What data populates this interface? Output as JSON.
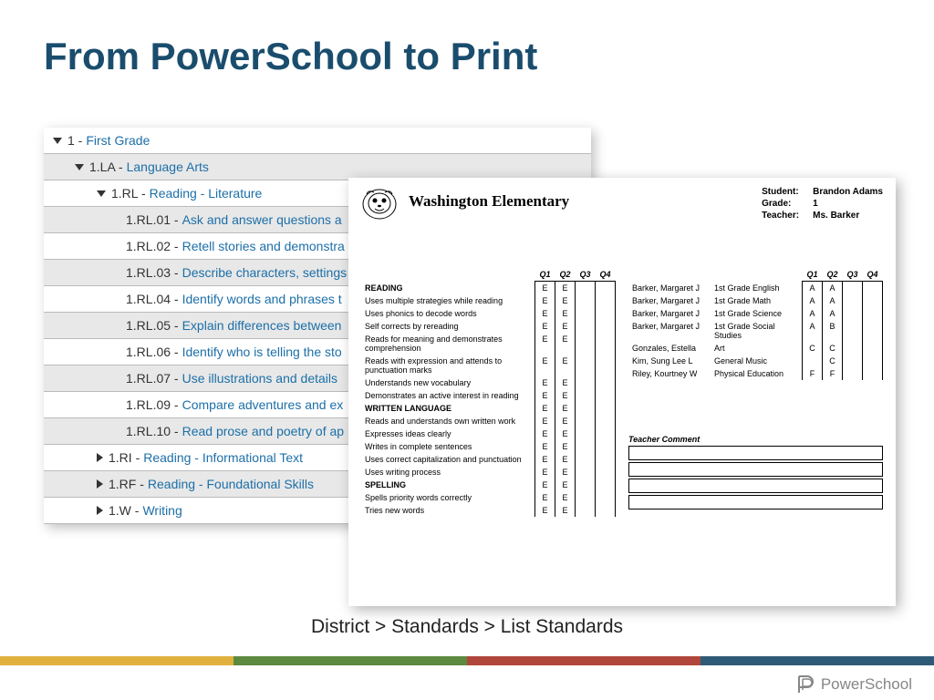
{
  "title": "From PowerSchool to Print",
  "breadcrumb": "District > Standards > List Standards",
  "footer_brand": "PowerSchool",
  "footer_colors": [
    "#e0b13f",
    "#5c8a3f",
    "#b0463c",
    "#2f5a77"
  ],
  "tree": {
    "root": {
      "code": "1 -",
      "label": "First Grade"
    },
    "items": [
      {
        "code": "1.LA -",
        "label": "Language Arts",
        "indent": 1,
        "arrow": "down"
      },
      {
        "code": "1.RL -",
        "label": "Reading - Literature",
        "indent": 2,
        "arrow": "down"
      },
      {
        "code": "1.RL.01 -",
        "label": "Ask and answer questions a",
        "indent": 3
      },
      {
        "code": "1.RL.02 -",
        "label": "Retell stories and demonstra",
        "indent": 3
      },
      {
        "code": "1.RL.03 -",
        "label": "Describe characters, settings",
        "indent": 3
      },
      {
        "code": "1.RL.04 -",
        "label": "Identify words and phrases t",
        "indent": 3
      },
      {
        "code": "1.RL.05 -",
        "label": "Explain differences between",
        "indent": 3
      },
      {
        "code": "1.RL.06 -",
        "label": "Identify who is telling the sto",
        "indent": 3
      },
      {
        "code": "1.RL.07 -",
        "label": "Use illustrations and details",
        "indent": 3
      },
      {
        "code": "1.RL.09 -",
        "label": "Compare adventures and ex",
        "indent": 3
      },
      {
        "code": "1.RL.10 -",
        "label": "Read prose and poetry of ap",
        "indent": 3
      },
      {
        "code": "1.RI -",
        "label": "Reading - Informational Text",
        "indent": 2,
        "arrow": "right"
      },
      {
        "code": "1.RF -",
        "label": "Reading - Foundational Skills",
        "indent": 2,
        "arrow": "right"
      },
      {
        "code": "1.W -",
        "label": "Writing",
        "indent": 2,
        "arrow": "right"
      }
    ]
  },
  "report": {
    "school": "Washington Elementary",
    "info": [
      {
        "label": "Student:",
        "value": "Brandon Adams"
      },
      {
        "label": "Grade:",
        "value": "1"
      },
      {
        "label": "Teacher:",
        "value": "Ms. Barker"
      }
    ],
    "quarters": [
      "Q1",
      "Q2",
      "Q3",
      "Q4"
    ],
    "left_rows": [
      {
        "label": "READING",
        "grades": [
          "E",
          "E",
          "",
          ""
        ],
        "section": true
      },
      {
        "label": "Uses multiple strategies while reading",
        "grades": [
          "E",
          "E",
          "",
          ""
        ]
      },
      {
        "label": "Uses phonics to decode words",
        "grades": [
          "E",
          "E",
          "",
          ""
        ]
      },
      {
        "label": "Self corrects by rereading",
        "grades": [
          "E",
          "E",
          "",
          ""
        ]
      },
      {
        "label": "Reads for meaning and demonstrates comprehension",
        "grades": [
          "E",
          "E",
          "",
          ""
        ]
      },
      {
        "label": "Reads with expression and attends to punctuation marks",
        "grades": [
          "E",
          "E",
          "",
          ""
        ]
      },
      {
        "label": "Understands new vocabulary",
        "grades": [
          "E",
          "E",
          "",
          ""
        ]
      },
      {
        "label": "Demonstrates an active interest in reading",
        "grades": [
          "E",
          "E",
          "",
          ""
        ]
      },
      {
        "label": "WRITTEN LANGUAGE",
        "grades": [
          "E",
          "E",
          "",
          ""
        ],
        "section": true
      },
      {
        "label": "Reads and understands own written work",
        "grades": [
          "E",
          "E",
          "",
          ""
        ]
      },
      {
        "label": "Expresses ideas clearly",
        "grades": [
          "E",
          "E",
          "",
          ""
        ]
      },
      {
        "label": "Writes in complete sentences",
        "grades": [
          "E",
          "E",
          "",
          ""
        ]
      },
      {
        "label": "Uses correct capitalization and punctuation",
        "grades": [
          "E",
          "E",
          "",
          ""
        ]
      },
      {
        "label": "Uses writing process",
        "grades": [
          "E",
          "E",
          "",
          ""
        ]
      },
      {
        "label": "SPELLING",
        "grades": [
          "E",
          "E",
          "",
          ""
        ],
        "section": true
      },
      {
        "label": "Spells priority words correctly",
        "grades": [
          "E",
          "E",
          "",
          ""
        ]
      },
      {
        "label": "Tries new words",
        "grades": [
          "E",
          "E",
          "",
          ""
        ]
      }
    ],
    "right_rows": [
      {
        "teacher": "Barker, Margaret J",
        "subject": "1st Grade English",
        "grades": [
          "A",
          "A",
          "",
          ""
        ]
      },
      {
        "teacher": "Barker, Margaret J",
        "subject": "1st Grade Math",
        "grades": [
          "A",
          "A",
          "",
          ""
        ]
      },
      {
        "teacher": "Barker, Margaret J",
        "subject": "1st Grade Science",
        "grades": [
          "A",
          "A",
          "",
          ""
        ]
      },
      {
        "teacher": "Barker, Margaret J",
        "subject": "1st Grade Social Studies",
        "grades": [
          "A",
          "B",
          "",
          ""
        ]
      },
      {
        "teacher": "Gonzales, Estella",
        "subject": "Art",
        "grades": [
          "C",
          "C",
          "",
          ""
        ]
      },
      {
        "teacher": "Kim, Sung Lee L",
        "subject": "General Music",
        "grades": [
          "",
          "C",
          "",
          ""
        ]
      },
      {
        "teacher": "Riley, Kourtney W",
        "subject": "Physical Education",
        "grades": [
          "F",
          "F",
          "",
          ""
        ]
      }
    ],
    "comment_label": "Teacher Comment",
    "comment_lines": 4
  }
}
